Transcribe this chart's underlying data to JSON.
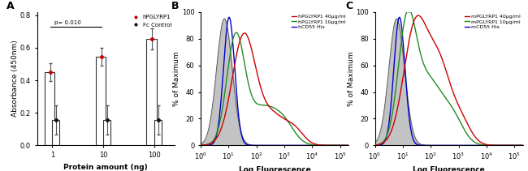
{
  "panel_A": {
    "label": "A",
    "categories": [
      1,
      10,
      100
    ],
    "hPGLYRP1_means": [
      0.45,
      0.545,
      0.655
    ],
    "hPGLYRP1_errors": [
      0.055,
      0.055,
      0.065
    ],
    "fc_means": [
      0.155,
      0.155,
      0.155
    ],
    "fc_errors": [
      0.09,
      0.09,
      0.09
    ],
    "hPGLYRP1_dot_color": "#cc0000",
    "fc_dot_color": "#111111",
    "bar_color": "#ffffff",
    "bar_edge": "#333333",
    "ylabel": "Absorbance (450nm)",
    "xlabel": "Protein amount (ng)",
    "ylim": [
      0,
      0.82
    ],
    "yticks": [
      0.0,
      0.2,
      0.4,
      0.6,
      0.8
    ],
    "p_text": "p= 0.010",
    "legend_labels": [
      "hPGLYRP1",
      "Fc Control"
    ],
    "legend_colors": [
      "#cc0000",
      "#111111"
    ]
  },
  "panel_B": {
    "label": "B",
    "xlabel": "Log Fluorescence",
    "ylabel": "% of Maximum",
    "ylim": [
      0,
      100
    ],
    "yticks": [
      0,
      20,
      40,
      60,
      80,
      100
    ],
    "legend_labels": [
      "hPGLYRP1 40μg/ml",
      "hPGLYRP1 10μg/ml",
      "hCD55 His"
    ],
    "legend_colors": [
      "#cc0000",
      "#228B22",
      "#0000cc"
    ],
    "gray_fill_color": "#aaaaaa",
    "gray_fill_edge": "#555555"
  },
  "panel_C": {
    "label": "C",
    "xlabel": "Log Fluorescence",
    "ylabel": "% of Maximum",
    "ylim": [
      0,
      100
    ],
    "yticks": [
      0,
      20,
      40,
      60,
      80,
      100
    ],
    "legend_labels": [
      "mPGLYRP1 40μg/ml",
      "mPGLYRP1 10μg/ml",
      "mCD55 His"
    ],
    "legend_colors": [
      "#cc0000",
      "#228B22",
      "#0000cc"
    ],
    "gray_fill_color": "#aaaaaa",
    "gray_fill_edge": "#555555"
  }
}
